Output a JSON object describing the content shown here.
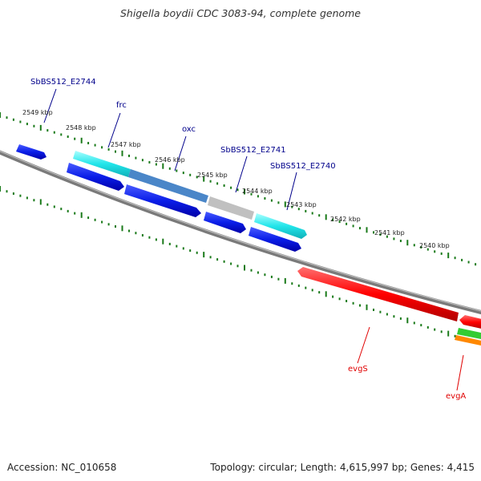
{
  "title": "Shigella boydii CDC 3083-94, complete genome",
  "footer": {
    "accession": "Accession: NC_010658",
    "topology": "Topology: circular; Length: 4,615,997 bp; Genes: 4,415"
  },
  "ticks": [
    "2549 kbp",
    "2548 kbp",
    "2547 kbp",
    "2546 kbp",
    "2545 kbp",
    "2544 kbp",
    "2543 kbp",
    "2542 kbp",
    "2541 kbp",
    "2540 kbp"
  ],
  "gene_labels": [
    "SbBS512_E2744",
    "frc",
    "oxc",
    "SbBS512_E2741",
    "SbBS512_E2740",
    "evgS",
    "evgA"
  ],
  "colors": {
    "backbone": "#7a7a7a",
    "scale_dots": "#1a7a1a",
    "label_blue": "#00008b",
    "label_red": "#e00000",
    "gene_blue": "#0a1ee8",
    "gene_cyan": "#22e5ea",
    "gene_steel": "#4a86c8",
    "gene_gray": "#c0c0c0",
    "gene_red": "#ff0000",
    "gene_green": "#33cc33",
    "gene_orange": "#ff8800"
  }
}
